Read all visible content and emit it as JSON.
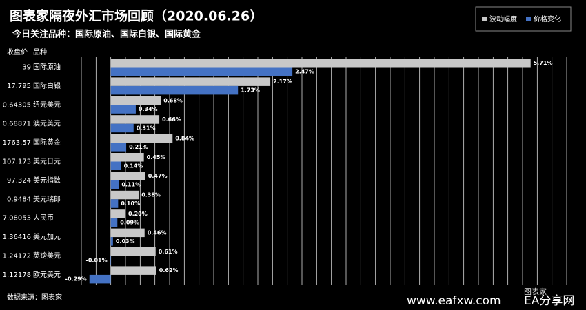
{
  "chart_data": {
    "type": "hbar",
    "title": "图表家隔夜外汇市场回顾（2020.06.26）",
    "subtitle": "今日关注品种：国际原油、国际白银、国际黄金",
    "price_header": "收盘价",
    "category_header": "品种",
    "source": "数据来源：图表家",
    "watermark": [
      "图表家",
      "www.eafxw.com",
      "EA分享网"
    ],
    "categories": [
      "国际原油",
      "国际白银",
      "纽元美元",
      "澳元美元",
      "国际黄金",
      "美元日元",
      "美元指数",
      "美元瑞郎",
      "人民币",
      "美元加元",
      "英镑美元",
      "欧元美元"
    ],
    "close_prices": [
      "39",
      "17.795",
      "0.64305",
      "0.68871",
      "1763.57",
      "107.173",
      "97.324",
      "0.9484",
      "7.08053",
      "1.36416",
      "1.24172",
      "1.12178"
    ],
    "series": [
      {
        "name": "波动幅度",
        "color": "#c8c8c8",
        "values": [
          5.71,
          2.17,
          0.68,
          0.66,
          0.84,
          0.45,
          0.47,
          0.38,
          0.2,
          0.46,
          0.61,
          0.62
        ],
        "value_labels": [
          "5.71%",
          "2.17%",
          "0.68%",
          "0.66%",
          "0.84%",
          "0.45%",
          "0.47%",
          "0.38%",
          "0.20%",
          "0.46%",
          "0.61%",
          "0.62%"
        ]
      },
      {
        "name": "价格变化",
        "color": "#4472c4",
        "values": [
          2.47,
          1.73,
          0.34,
          0.31,
          0.21,
          0.14,
          0.11,
          0.1,
          0.09,
          0.03,
          -0.01,
          -0.29
        ],
        "value_labels": [
          "2.47%",
          "1.73%",
          "0.34%",
          "0.31%",
          "0.21%",
          "0.14%",
          "0.11%",
          "0.10%",
          "0.09%",
          "0.03%",
          "-0.01%",
          "-0.29%"
        ]
      }
    ],
    "xlim": [
      -0.4,
      6.2
    ],
    "xticks": [
      -0.4,
      -0.2,
      0,
      0.2,
      0.4,
      0.6,
      0.8,
      1,
      1.2,
      1.4,
      1.6,
      1.8,
      2,
      2.2,
      2.4,
      2.6,
      2.8,
      3,
      3.2,
      3.4,
      3.6,
      3.8,
      4,
      4.2,
      4.4,
      4.6,
      4.8,
      5,
      5.2,
      5.4,
      5.6,
      5.8,
      6,
      6.2
    ],
    "grid": true,
    "legend": "top-right"
  }
}
